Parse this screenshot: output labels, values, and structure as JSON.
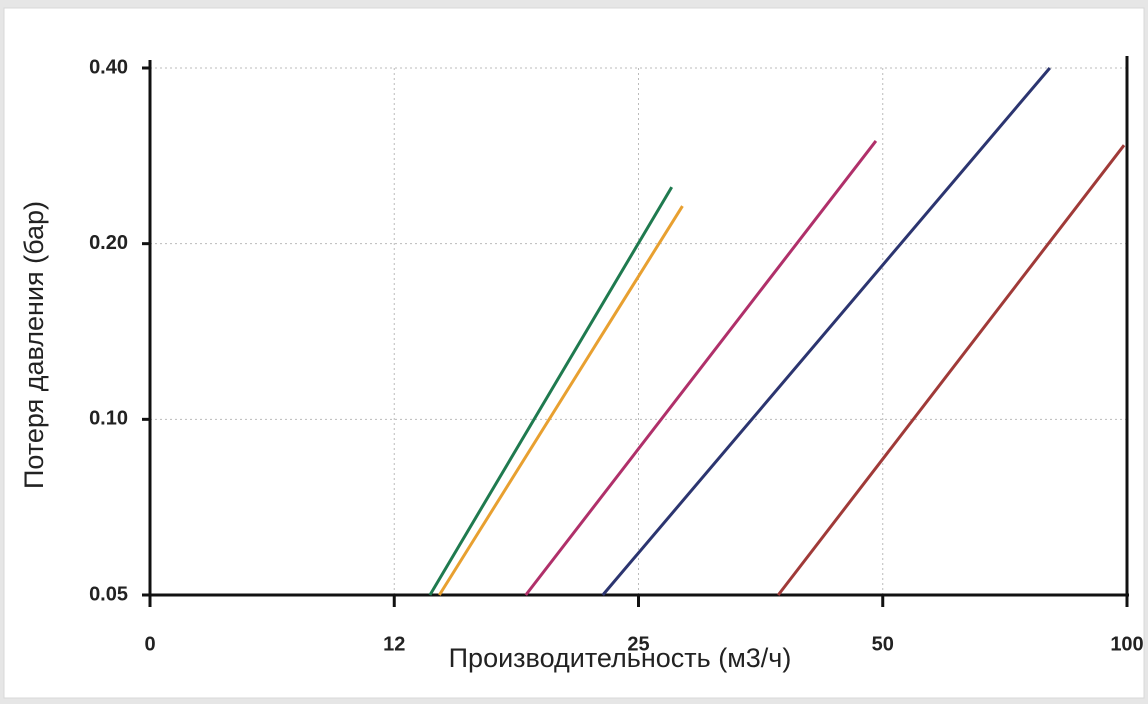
{
  "chart_data": {
    "type": "line",
    "xlabel": "Производительность (м3/ч)",
    "ylabel": "Потеря давления (бар)",
    "xlim": [
      0,
      100
    ],
    "xticks": [
      0,
      12,
      25,
      50,
      100
    ],
    "xscale": "tick-spaced",
    "ylim": [
      0.05,
      0.4
    ],
    "yticks": [
      0.05,
      {
        "value": 0.1,
        "label": "0.10"
      },
      {
        "value": 0.2,
        "label": "0.20"
      },
      {
        "value": 0.4,
        "label": "0.40"
      }
    ],
    "ylog": true,
    "grid": true,
    "series": [
      {
        "color": "#1f7a4f",
        "x": [
          13.9,
          28.4
        ],
        "values": [
          0.05,
          0.25
        ]
      },
      {
        "color": "#e8a030",
        "x": [
          14.4,
          29.5
        ],
        "values": [
          0.05,
          0.232
        ]
      },
      {
        "color": "#b0306a",
        "x": [
          19.0,
          49.3
        ],
        "values": [
          0.05,
          0.3
        ]
      },
      {
        "color": "#2c3570",
        "x": [
          23.1,
          84.2
        ],
        "values": [
          0.05,
          0.4
        ]
      },
      {
        "color": "#a03a38",
        "x": [
          39.3,
          99.4
        ],
        "values": [
          0.05,
          0.295
        ]
      }
    ]
  }
}
